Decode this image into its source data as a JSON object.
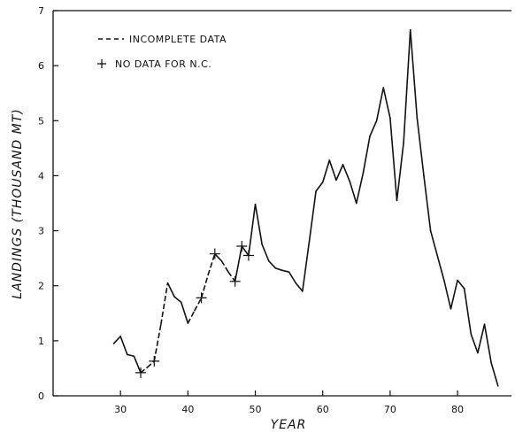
{
  "chart_data": {
    "type": "line",
    "title": "",
    "xlabel": "YEAR",
    "ylabel": "LANDINGS (THOUSAND MT)",
    "xlim": [
      20,
      88
    ],
    "ylim": [
      0,
      7
    ],
    "xticks": [
      30,
      40,
      50,
      60,
      70,
      80
    ],
    "yticks": [
      0,
      1,
      2,
      3,
      4,
      5,
      6,
      7
    ],
    "grid": false,
    "legend_position": "top-left",
    "legend": {
      "incomplete": "INCOMPLETE DATA",
      "no_nc": "NO DATA FOR N.C."
    },
    "series": [
      {
        "x": [
          29,
          30,
          31,
          32,
          33,
          34,
          35,
          36,
          37,
          38,
          39,
          40,
          41,
          42,
          43,
          44,
          45,
          46,
          47,
          48,
          49,
          50,
          51,
          52,
          53,
          54,
          55,
          56,
          57,
          58,
          59,
          60,
          61,
          62,
          63,
          64,
          65,
          66,
          67,
          68,
          69,
          70,
          71,
          72,
          73,
          74,
          75,
          76,
          77,
          78,
          79,
          80,
          81,
          82,
          83,
          84,
          85,
          86
        ],
        "y": [
          0.95,
          1.08,
          0.75,
          0.72,
          0.42,
          0.52,
          0.63,
          1.3,
          2.05,
          1.8,
          1.7,
          1.32,
          1.55,
          1.78,
          2.2,
          2.58,
          2.45,
          2.25,
          2.08,
          2.72,
          2.55,
          3.48,
          2.75,
          2.45,
          2.32,
          2.28,
          2.25,
          2.05,
          1.9,
          2.8,
          3.72,
          3.88,
          4.28,
          3.92,
          4.2,
          3.9,
          3.5,
          4.05,
          4.72,
          5.0,
          5.6,
          5.05,
          3.55,
          4.6,
          6.65,
          5.05,
          4.0,
          3.0,
          2.55,
          2.1,
          1.58,
          2.1,
          1.95,
          1.12,
          0.78,
          1.3,
          0.6,
          0.18
        ],
        "incomplete_segments": [
          [
            33,
            37
          ],
          [
            40,
            44
          ],
          [
            45,
            47
          ]
        ],
        "no_data_nc_years": [
          33,
          35,
          42,
          44,
          47,
          48,
          49
        ]
      }
    ]
  }
}
